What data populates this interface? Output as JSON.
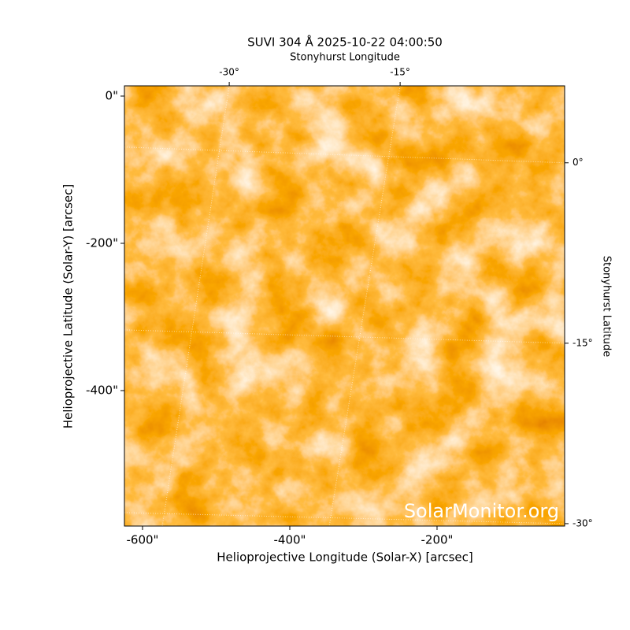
{
  "chart_data": {
    "type": "image",
    "title": "SUVI 304 Å 2025-10-22 04:00:50",
    "xlabel": "Helioprojective Longitude (Solar-X) [arcsec]",
    "ylabel": "Helioprojective Latitude (Solar-Y) [arcsec]",
    "x2label": "Stonyhurst Longitude",
    "y2label": "Stonyhurst Latitude",
    "watermark": "SolarMonitor.org",
    "xlim": [
      -624.6,
      -26.7
    ],
    "ylim": [
      -584,
      13.9
    ],
    "xticks": [
      {
        "value": -600,
        "label": "-600\""
      },
      {
        "value": -400,
        "label": "-400\""
      },
      {
        "value": -200,
        "label": "-200\""
      }
    ],
    "yticks": [
      {
        "value": 0,
        "label": "0\""
      },
      {
        "value": -200,
        "label": "-200\""
      },
      {
        "value": -400,
        "label": "-400\""
      }
    ],
    "x2lim": [
      -39.2,
      -0.56
    ],
    "x2ticks": [
      {
        "value": -30,
        "label": "-30°"
      },
      {
        "value": -15,
        "label": "-15°"
      }
    ],
    "y2lim": [
      -30.2,
      6.4
    ],
    "y2ticks": [
      {
        "value": 0,
        "label": "0°"
      },
      {
        "value": -15,
        "label": "-15°"
      },
      {
        "value": -30,
        "label": "-30°"
      }
    ],
    "grid": true
  }
}
